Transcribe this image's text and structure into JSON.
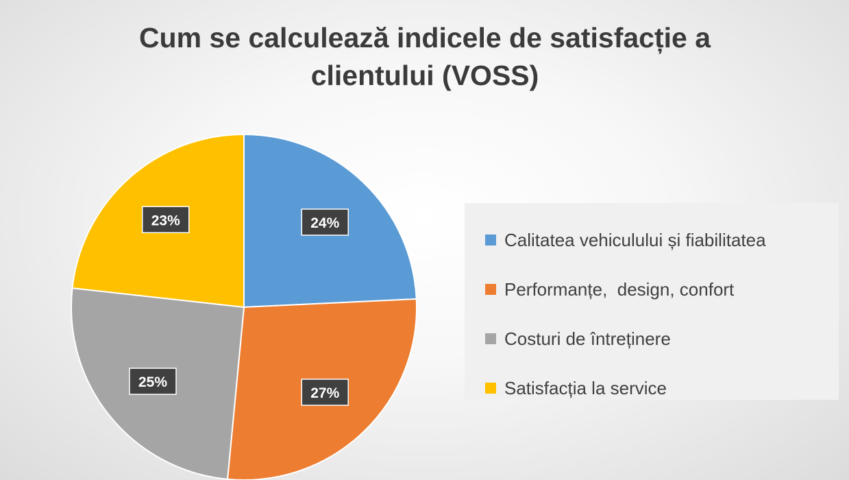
{
  "chart_data": {
    "type": "pie",
    "title": "Cum se calculează indicele de satisfacție a clientului (VOSS)",
    "title_lines": [
      "Cum se calculează indicele de satisfacție a",
      "clientului (VOSS)"
    ],
    "categories": [
      "Calitatea vehiculului și fiabilitatea",
      "Performanțe,  design, confort",
      "Costuri de întreținere",
      "Satisfacția la service"
    ],
    "values": [
      24,
      27,
      25,
      23
    ],
    "data_labels": [
      "24%",
      "27%",
      "25%",
      "23%"
    ],
    "colors": [
      "#5b9bd5",
      "#ed7d31",
      "#a5a5a5",
      "#ffc000"
    ],
    "legend_position": "right"
  }
}
